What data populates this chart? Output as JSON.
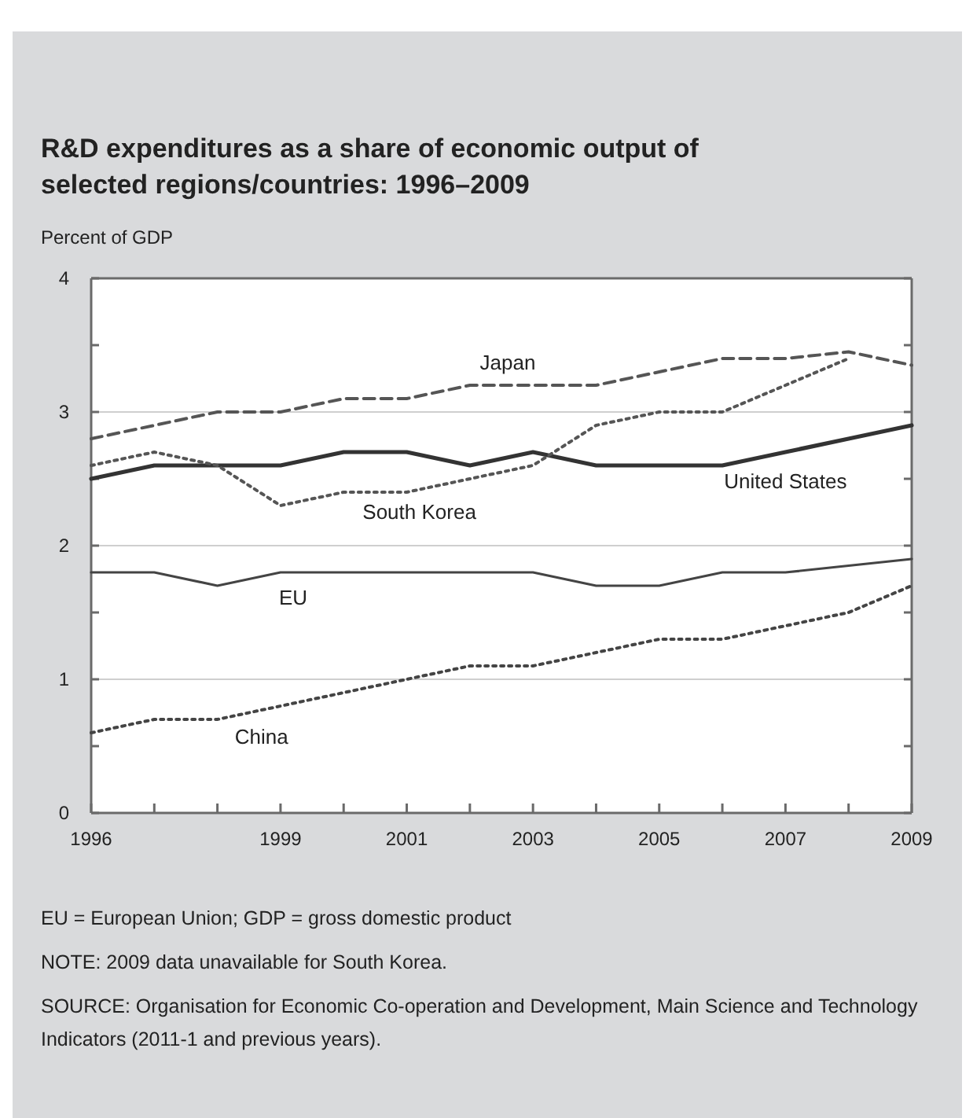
{
  "chart_data": {
    "type": "line",
    "title": "R&D expenditures as a share of economic output of selected regions/countries: 1996–2009",
    "ylabel": "Percent of GDP",
    "x": [
      1996,
      1997,
      1998,
      1999,
      2000,
      2001,
      2002,
      2003,
      2004,
      2005,
      2006,
      2007,
      2008,
      2009
    ],
    "xlim": [
      1996,
      2009
    ],
    "xticks": [
      1996,
      {
        "value": 1997,
        "label": null
      },
      {
        "value": 1998,
        "label": null
      },
      1999,
      {
        "value": 2000,
        "label": null
      },
      2001,
      {
        "value": 2002,
        "label": null
      },
      2003,
      {
        "value": 2004,
        "label": null
      },
      2005,
      {
        "value": 2006,
        "label": null
      },
      2007,
      {
        "value": 2008,
        "label": null
      },
      2009
    ],
    "ylim": [
      0,
      4
    ],
    "yticks": [
      0,
      {
        "value": 0.5,
        "label": null
      },
      1,
      {
        "value": 1.5,
        "label": null
      },
      2,
      {
        "value": 2.5,
        "label": null
      },
      3,
      {
        "value": 3.5,
        "label": null
      },
      4
    ],
    "grid": "y",
    "legend": false,
    "marker": "none",
    "series": [
      {
        "name": "Japan",
        "color": "#555555",
        "line_style": "dashed",
        "values": [
          2.8,
          2.9,
          3.0,
          3.0,
          3.1,
          3.1,
          3.2,
          3.2,
          3.2,
          3.3,
          3.4,
          3.4,
          3.45,
          3.35
        ]
      },
      {
        "name": "United States",
        "color": "#333333",
        "line_style": "solid",
        "values": [
          2.5,
          2.6,
          2.6,
          2.6,
          2.7,
          2.7,
          2.6,
          2.7,
          2.6,
          2.6,
          2.6,
          2.7,
          2.8,
          2.9
        ]
      },
      {
        "name": "South Korea",
        "color": "#555555",
        "line_style": "dotted",
        "values": [
          2.6,
          2.7,
          2.6,
          2.3,
          2.4,
          2.4,
          2.5,
          2.6,
          2.9,
          3.0,
          3.0,
          3.2,
          3.4,
          null
        ]
      },
      {
        "name": "EU",
        "color": "#444444",
        "line_style": "solid",
        "values": [
          1.8,
          1.8,
          1.7,
          1.8,
          1.8,
          1.8,
          1.8,
          1.8,
          1.7,
          1.7,
          1.8,
          1.8,
          1.85,
          1.9
        ]
      },
      {
        "name": "China",
        "color": "#444444",
        "line_style": "dotted",
        "values": [
          0.6,
          0.7,
          0.7,
          0.8,
          0.9,
          1.0,
          1.1,
          1.1,
          1.2,
          1.3,
          1.3,
          1.4,
          1.5,
          1.7
        ]
      }
    ],
    "annotations": [
      "EU = European Union; GDP = gross domestic product",
      "NOTE: 2009 data unavailable for South Korea.",
      "SOURCE: Organisation for Economic Co-operation and Development, Main Science and Technology Indicators (2011-1 and previous years)."
    ]
  }
}
